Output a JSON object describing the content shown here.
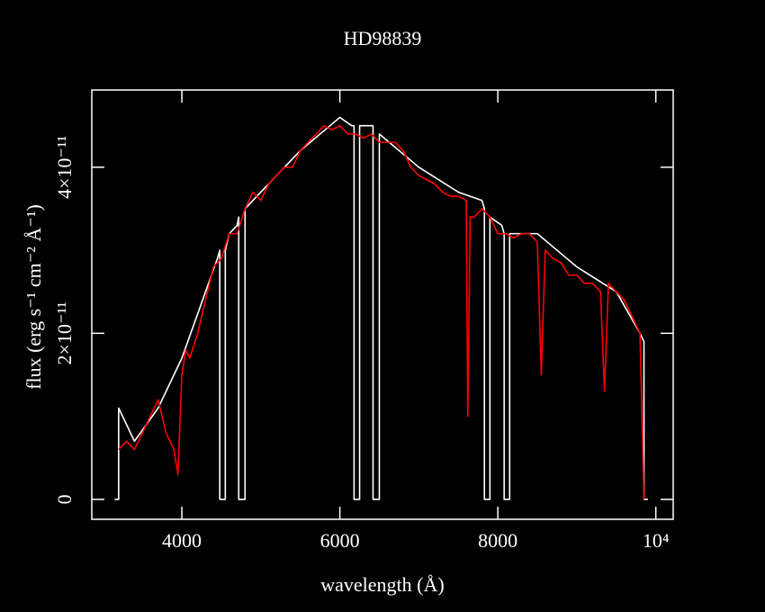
{
  "chart_data": {
    "type": "line",
    "title": "HD98839",
    "xlabel": "wavelength (Å)",
    "ylabel": "flux (erg s⁻¹ cm⁻² Å⁻¹)",
    "xlim": [
      2860,
      10220
    ],
    "ylim": [
      -2.4e-12,
      4.93e-11
    ],
    "xticks": [
      4000,
      6000,
      8000,
      {
        "value": 10000,
        "label": "10⁴"
      }
    ],
    "yticks": [
      0,
      {
        "value": 2e-11,
        "label": "2×10⁻¹¹"
      },
      {
        "value": 4e-11,
        "label": "4×10⁻¹¹"
      }
    ],
    "background": "#000000",
    "axis_color": "#ffffff",
    "series": [
      {
        "color": "#ffffff",
        "x": [
          3150,
          3200,
          3200,
          3400,
          3700,
          4000,
          4300,
          4450,
          4480,
          4480,
          4550,
          4550,
          4600,
          4700,
          4720,
          4720,
          4800,
          4800,
          5000,
          5500,
          6000,
          6150,
          6180,
          6180,
          6250,
          6250,
          6400,
          6420,
          6420,
          6500,
          6500,
          7000,
          7500,
          7800,
          7830,
          7830,
          7900,
          7900,
          8050,
          8080,
          8080,
          8150,
          8150,
          8500,
          9000,
          9500,
          9800,
          9850,
          9850,
          9900
        ],
        "values": [
          0,
          0,
          1.1e-11,
          7e-12,
          1.1e-11,
          1.7e-11,
          2.5e-11,
          2.9e-11,
          3e-11,
          0,
          0,
          3e-11,
          3.2e-11,
          3.3e-11,
          3.4e-11,
          0,
          0,
          3.5e-11,
          3.7e-11,
          4.2e-11,
          4.6e-11,
          4.5e-11,
          4.5e-11,
          0,
          0,
          4.5e-11,
          4.5e-11,
          4.5e-11,
          0,
          0,
          4.4e-11,
          4e-11,
          3.7e-11,
          3.6e-11,
          3.5e-11,
          0,
          0,
          3.4e-11,
          3.3e-11,
          3.2e-11,
          0,
          0,
          3.2e-11,
          3.2e-11,
          2.8e-11,
          2.5e-11,
          2e-11,
          1.9e-11,
          0,
          0
        ]
      },
      {
        "color": "#ff0000",
        "x": [
          3200,
          3300,
          3400,
          3500,
          3600,
          3700,
          3800,
          3900,
          3950,
          4000,
          4050,
          4100,
          4200,
          4300,
          4400,
          4500,
          4600,
          4700,
          4800,
          4900,
          5000,
          5100,
          5200,
          5300,
          5400,
          5500,
          5600,
          5700,
          5800,
          5900,
          6000,
          6100,
          6200,
          6300,
          6400,
          6500,
          6600,
          6700,
          6800,
          6900,
          7000,
          7100,
          7200,
          7300,
          7400,
          7500,
          7600,
          7620,
          7650,
          7700,
          7800,
          7900,
          8000,
          8100,
          8200,
          8300,
          8400,
          8500,
          8550,
          8600,
          8700,
          8800,
          8900,
          9000,
          9100,
          9200,
          9300,
          9350,
          9400,
          9500,
          9600,
          9700,
          9800,
          9850
        ],
        "values": [
          6e-12,
          7e-12,
          6e-12,
          8e-12,
          1e-11,
          1.2e-11,
          8e-12,
          6e-12,
          3e-12,
          1.5e-11,
          1.8e-11,
          1.7e-11,
          2e-11,
          2.4e-11,
          2.8e-11,
          2.9e-11,
          3.2e-11,
          3.2e-11,
          3.5e-11,
          3.7e-11,
          3.6e-11,
          3.8e-11,
          3.9e-11,
          4e-11,
          4e-11,
          4.2e-11,
          4.3e-11,
          4.4e-11,
          4.5e-11,
          4.45e-11,
          4.5e-11,
          4.4e-11,
          4.4e-11,
          4.35e-11,
          4.4e-11,
          4.3e-11,
          4.3e-11,
          4.3e-11,
          4.2e-11,
          4e-11,
          3.9e-11,
          3.85e-11,
          3.8e-11,
          3.7e-11,
          3.65e-11,
          3.65e-11,
          3.6e-11,
          1e-11,
          3.4e-11,
          3.4e-11,
          3.5e-11,
          3.4e-11,
          3.2e-11,
          3.2e-11,
          3.15e-11,
          3.2e-11,
          3.2e-11,
          3.1e-11,
          1.5e-11,
          3e-11,
          2.9e-11,
          2.85e-11,
          2.7e-11,
          2.7e-11,
          2.6e-11,
          2.6e-11,
          2.5e-11,
          1.3e-11,
          2.6e-11,
          2.5e-11,
          2.4e-11,
          2.2e-11,
          2e-11,
          0
        ]
      }
    ]
  }
}
